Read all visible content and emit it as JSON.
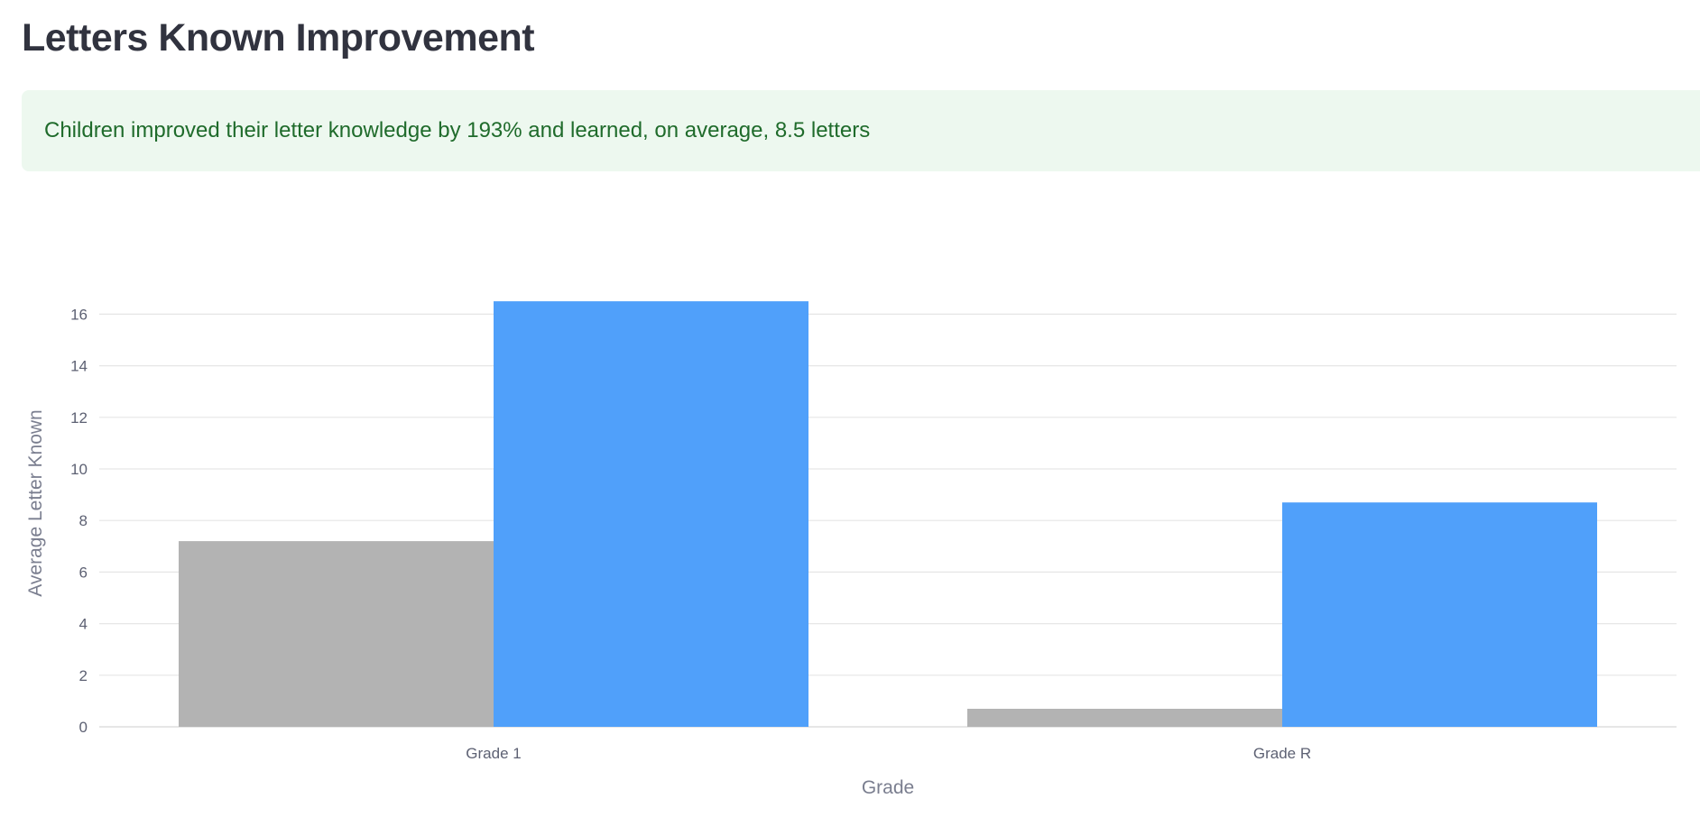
{
  "header": {
    "title": "Letters Known Improvement"
  },
  "alert": {
    "text": "Children improved their letter knowledge by 193% and learned, on average, 8.5 letters"
  },
  "colors": {
    "series_1": "#b3b3b3",
    "series_2": "#50a0fa",
    "grid": "#e6e6e6"
  },
  "chart_data": {
    "type": "bar",
    "title": "",
    "xlabel": "Grade",
    "ylabel": "Average Letter Known",
    "categories": [
      "Grade 1",
      "Grade R"
    ],
    "series": [
      {
        "name": "",
        "values": [
          7.2,
          0.7
        ]
      },
      {
        "name": "",
        "values": [
          16.5,
          8.7
        ]
      }
    ],
    "ylim": [
      0,
      17
    ],
    "yticks": [
      0,
      2,
      4,
      6,
      8,
      10,
      12,
      14,
      16
    ],
    "grid": true,
    "legend": "none"
  }
}
